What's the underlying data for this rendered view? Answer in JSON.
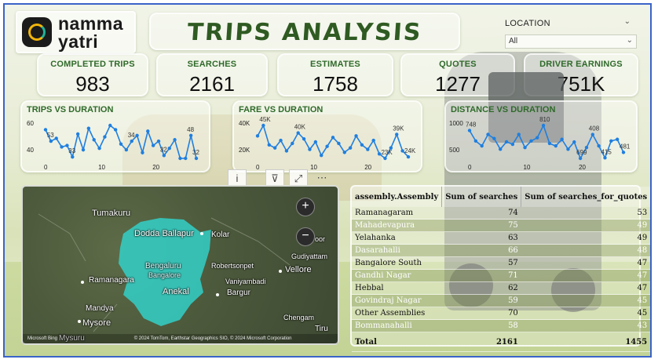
{
  "logo": {
    "line1": "namma",
    "line2": "yatri"
  },
  "title": "TRIPS ANALYSIS",
  "slicer": {
    "label": "LOCATION",
    "value": "All"
  },
  "kpis": [
    {
      "label": "COMPLETED TRIPS",
      "value": "983"
    },
    {
      "label": "SEARCHES",
      "value": "2161"
    },
    {
      "label": "ESTIMATES",
      "value": "1758"
    },
    {
      "label": "QUOTES",
      "value": "1277"
    },
    {
      "label": "DRIVER EARNINGS",
      "value": "751K"
    }
  ],
  "chart_data": [
    {
      "type": "line",
      "title": "TRIPS VS DURATION",
      "ylabels": [
        "60",
        "40"
      ],
      "xlabels": [
        "0",
        "10",
        "20"
      ],
      "annotations": [
        "53",
        "33",
        "34",
        "32",
        "48",
        "32"
      ],
      "y": [
        52,
        44,
        46,
        40,
        41,
        33,
        49,
        38,
        53,
        45,
        39,
        47,
        55,
        52,
        42,
        38,
        44,
        48,
        36,
        51,
        41,
        44,
        34,
        39,
        45,
        32,
        32,
        48,
        32
      ]
    },
    {
      "type": "line",
      "title": "FARE VS DURATION",
      "ylabels": [
        "40K",
        "20K"
      ],
      "xlabels": [
        "0",
        "10",
        "20"
      ],
      "annotations": [
        "45K",
        "40K",
        "23K",
        "39K",
        "24K"
      ],
      "y": [
        38,
        45,
        32,
        30,
        35,
        28,
        33,
        40,
        36,
        29,
        34,
        25,
        31,
        37,
        33,
        27,
        30,
        38,
        32,
        29,
        35,
        26,
        23,
        30,
        39,
        28,
        24
      ]
    },
    {
      "type": "line",
      "title": "DISTANCE VS DURATION",
      "ylabels": [
        "1000",
        "500"
      ],
      "xlabels": [
        "0",
        "10",
        "20"
      ],
      "annotations": [
        "748",
        "810",
        "699",
        "408",
        "415",
        "481"
      ],
      "y": [
        748,
        620,
        560,
        700,
        650,
        520,
        610,
        580,
        700,
        540,
        620,
        660,
        810,
        590,
        560,
        640,
        520,
        608,
        408,
        540,
        699,
        560,
        415,
        620,
        640,
        481
      ]
    }
  ],
  "toolbar": {
    "info": "i",
    "filter": "⊽",
    "expand": "⤢",
    "more": "⋯"
  },
  "map": {
    "labels": [
      "Tumakuru",
      "Dodda Ballapur",
      "Kolar",
      "Robertsonpet",
      "Gudiyattam",
      "Bengaluru",
      "Bangalore",
      "Ramanagara",
      "Anekal",
      "Vaniyambadi",
      "Vellore",
      "Bargur",
      "Mandya",
      "Mysore",
      "Chengam",
      "Mysuru",
      "Tiru",
      "oor"
    ],
    "zoom_in": "+",
    "zoom_out": "−",
    "footer": "© 2024 TomTom, Earthstar Geographics SIO, © 2024 Microsoft Corporation",
    "brand": "Microsoft Bing"
  },
  "table": {
    "headers": [
      "assembly.Assembly",
      "Sum of searches",
      "Sum of searches_for_quotes"
    ],
    "rows": [
      [
        "Ramanagaram",
        "74",
        "53"
      ],
      [
        "Mahadevapura",
        "75",
        "49"
      ],
      [
        "Yelahanka",
        "63",
        "49"
      ],
      [
        "Dasarahalli",
        "66",
        "48"
      ],
      [
        "Bangalore South",
        "57",
        "47"
      ],
      [
        "Gandhi Nagar",
        "71",
        "47"
      ],
      [
        "Hebbal",
        "62",
        "47"
      ],
      [
        "Govindraj Nagar",
        "59",
        "45"
      ],
      [
        "Other Assemblies",
        "70",
        "45"
      ],
      [
        "Bommanahalli",
        "58",
        "43"
      ]
    ],
    "total": [
      "Total",
      "2161",
      "1455"
    ]
  }
}
